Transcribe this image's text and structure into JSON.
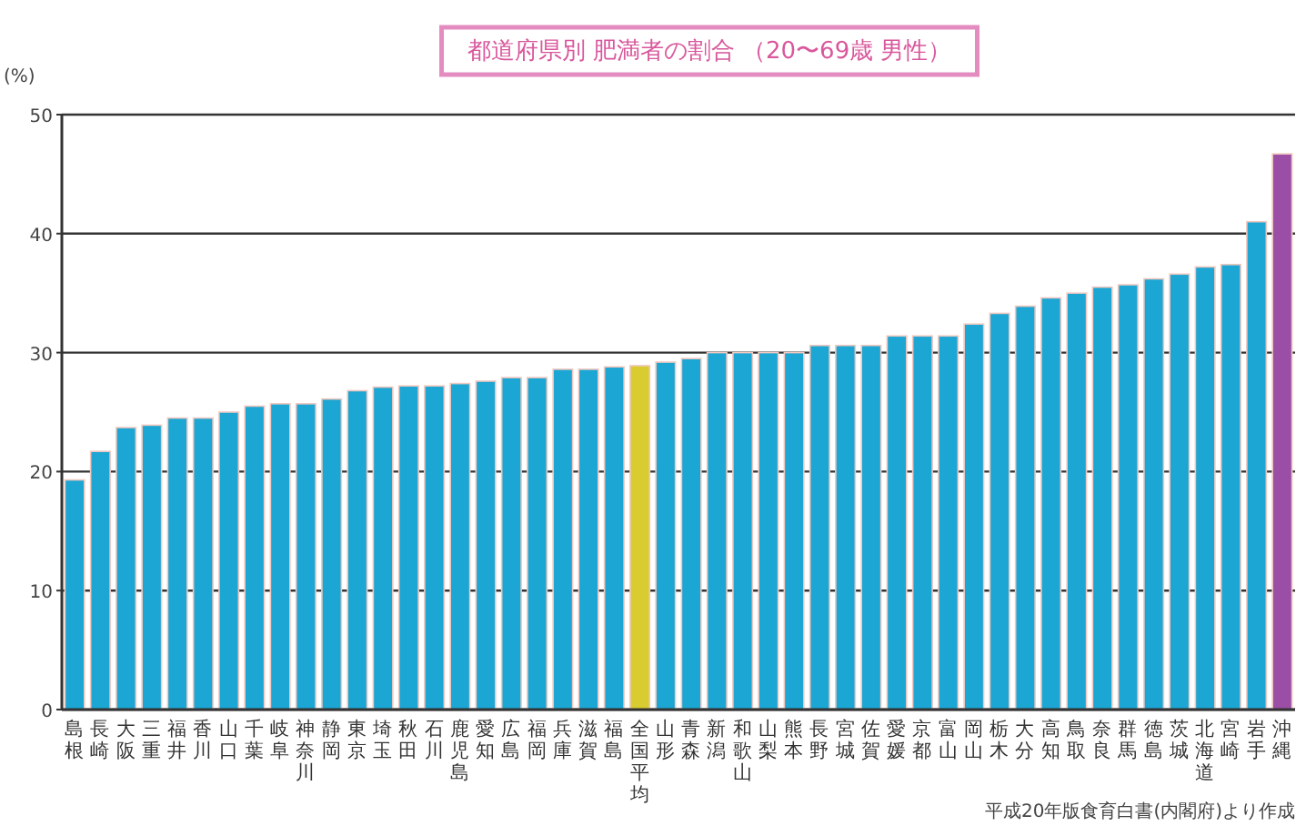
{
  "chart_data": {
    "type": "bar",
    "title": "都道府県別 肥満者の割合 （20〜69歳 男性）",
    "ylabel": "(%)",
    "categories": [
      "島根",
      "長崎",
      "大阪",
      "三重",
      "福井",
      "香川",
      "山口",
      "千葉",
      "岐阜",
      "神奈川",
      "静岡",
      "東京",
      "埼玉",
      "秋田",
      "石川",
      "鹿児島",
      "愛知",
      "広島",
      "福岡",
      "兵庫",
      "滋賀",
      "福島",
      "全国平均",
      "山形",
      "青森",
      "新潟",
      "和歌山",
      "山梨",
      "熊本",
      "長野",
      "宮城",
      "佐賀",
      "愛媛",
      "京都",
      "富山",
      "岡山",
      "栃木",
      "大分",
      "高知",
      "鳥取",
      "奈良",
      "群馬",
      "徳島",
      "茨城",
      "北海道",
      "宮崎",
      "岩手",
      "沖縄"
    ],
    "values": [
      19.3,
      21.7,
      23.7,
      23.9,
      24.5,
      24.5,
      25.0,
      25.5,
      25.7,
      25.7,
      26.1,
      26.8,
      27.1,
      27.2,
      27.2,
      27.4,
      27.6,
      27.9,
      27.9,
      28.6,
      28.6,
      28.8,
      28.9,
      29.2,
      29.5,
      30.0,
      30.0,
      30.0,
      30.0,
      30.6,
      30.6,
      30.6,
      31.4,
      31.4,
      31.4,
      32.4,
      33.3,
      33.9,
      34.6,
      35.0,
      35.5,
      35.7,
      36.2,
      36.6,
      37.2,
      37.4,
      41.0,
      46.7
    ],
    "colors": [
      "#1ba6d3",
      "#1ba6d3",
      "#1ba6d3",
      "#1ba6d3",
      "#1ba6d3",
      "#1ba6d3",
      "#1ba6d3",
      "#1ba6d3",
      "#1ba6d3",
      "#1ba6d3",
      "#1ba6d3",
      "#1ba6d3",
      "#1ba6d3",
      "#1ba6d3",
      "#1ba6d3",
      "#1ba6d3",
      "#1ba6d3",
      "#1ba6d3",
      "#1ba6d3",
      "#1ba6d3",
      "#1ba6d3",
      "#1ba6d3",
      "#d8cc30",
      "#1ba6d3",
      "#1ba6d3",
      "#1ba6d3",
      "#1ba6d3",
      "#1ba6d3",
      "#1ba6d3",
      "#1ba6d3",
      "#1ba6d3",
      "#1ba6d3",
      "#1ba6d3",
      "#1ba6d3",
      "#1ba6d3",
      "#1ba6d3",
      "#1ba6d3",
      "#1ba6d3",
      "#1ba6d3",
      "#1ba6d3",
      "#1ba6d3",
      "#1ba6d3",
      "#1ba6d3",
      "#1ba6d3",
      "#1ba6d3",
      "#1ba6d3",
      "#1ba6d3",
      "#9b4ea6"
    ],
    "ylim": [
      0,
      50
    ],
    "yticks": [
      0,
      10,
      20,
      30,
      40,
      50
    ],
    "grid": "y",
    "annotations": [
      "平成20年版食育白書(内閣府)より作成"
    ]
  }
}
